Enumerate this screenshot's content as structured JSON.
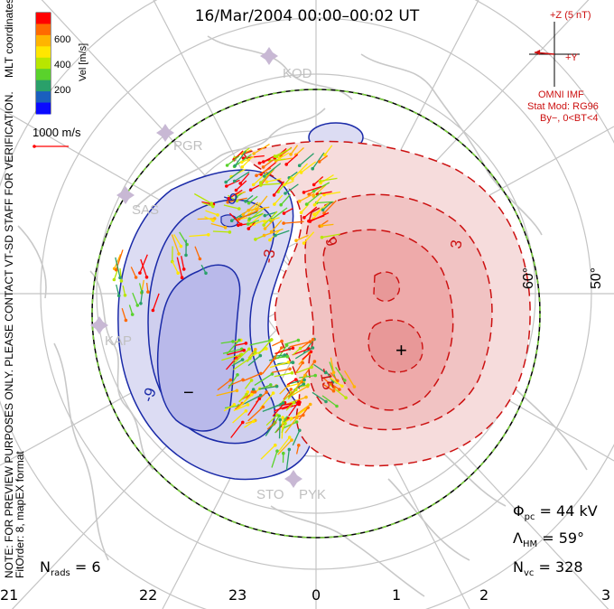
{
  "title": "16/Mar/2004 00:00–00:02 UT",
  "coordinates_label": "MLT coordinates",
  "legend": {
    "axis_label": "Vel [m/s]",
    "ticks": [
      "600",
      "400",
      "200"
    ],
    "colors": [
      "#ff0000",
      "#ff6a00",
      "#ffb400",
      "#ffe600",
      "#b8e600",
      "#5ad22c",
      "#2aa06a",
      "#1a5fbe",
      "#0a0aff"
    ],
    "scale_label": "1000 m/s"
  },
  "imf": {
    "z_label": "+Z (5 nT)",
    "y_label": "+Y",
    "source": "OMNI IMF",
    "model": "Stat Mod: RG96",
    "condition": "By−, 0<BT<4"
  },
  "side_note_1": "NOTE: FOR PREVIEW PURPOSES ONLY. PLEASE CONTACT VT-SD STAFF FOR VERIFICATION.",
  "side_note_2": "FitOrder: 8, mapEX format",
  "latitude_labels": [
    "60°",
    "50°"
  ],
  "mlt_ticks": [
    "21",
    "22",
    "23",
    "0",
    "1",
    "2",
    "3"
  ],
  "stations": [
    "KOD",
    "PGR",
    "SAS",
    "KAP",
    "STO",
    "PYK"
  ],
  "contour_labels": [
    "-9",
    "-3",
    "-9",
    "3",
    "-15",
    "9"
  ],
  "markers": {
    "min": "−",
    "max": "+"
  },
  "params": {
    "phi_pc": "44 kV",
    "lambda_hm": "59°",
    "n_vc": "328",
    "n_rads": "6"
  },
  "colors": {
    "positive": "#cc1010",
    "negative": "#1a2aa8",
    "positive_fill": "#f3b8b8",
    "negative_fill": "#c9c9ee",
    "boundary": "#66cc33",
    "grid": "#c0c0c0"
  }
}
